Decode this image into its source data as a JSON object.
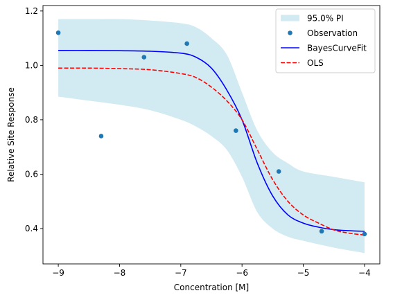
{
  "chart_data": {
    "type": "line",
    "xlabel": "Concentration [M]",
    "ylabel": "Relative Site Response",
    "xlim": [
      -9.25,
      -3.75
    ],
    "ylim": [
      0.27,
      1.22
    ],
    "grid": false,
    "legend_position": "top-right",
    "x_ticks": [
      -9,
      -8,
      -7,
      -6,
      -5,
      -4
    ],
    "x_tick_labels": [
      "−9",
      "−8",
      "−7",
      "−6",
      "−5",
      "−4"
    ],
    "y_ticks": [
      0.4,
      0.6,
      0.8,
      1.0,
      1.2
    ],
    "y_tick_labels": [
      "0.4",
      "0.6",
      "0.8",
      "1.0",
      "1.2"
    ],
    "series": [
      {
        "name": "95.0% PI",
        "kind": "band",
        "color": "#add8e6",
        "x": [
          -9.0,
          -8.5,
          -8.0,
          -7.5,
          -7.0,
          -6.75,
          -6.5,
          -6.25,
          -6.0,
          -5.75,
          -5.5,
          -5.25,
          -5.0,
          -4.5,
          -4.0
        ],
        "upper": [
          1.17,
          1.17,
          1.17,
          1.165,
          1.155,
          1.14,
          1.1,
          1.04,
          0.9,
          0.76,
          0.68,
          0.64,
          0.61,
          0.59,
          0.57
        ],
        "lower": [
          0.885,
          0.87,
          0.855,
          0.835,
          0.8,
          0.775,
          0.74,
          0.69,
          0.59,
          0.46,
          0.4,
          0.37,
          0.355,
          0.33,
          0.31
        ]
      },
      {
        "name": "Observation",
        "kind": "scatter",
        "color": "#1f77b4",
        "x": [
          -9.0,
          -8.3,
          -7.6,
          -6.9,
          -6.1,
          -5.4,
          -4.7,
          -4.0
        ],
        "y": [
          1.12,
          0.74,
          1.03,
          1.08,
          0.76,
          0.61,
          0.39,
          0.38
        ]
      },
      {
        "name": "BayesCurveFit",
        "kind": "line",
        "color": "#0000ff",
        "dash": "solid",
        "x": [
          -9.0,
          -8.5,
          -8.0,
          -7.5,
          -7.0,
          -6.75,
          -6.5,
          -6.25,
          -6.0,
          -5.75,
          -5.5,
          -5.25,
          -5.0,
          -4.75,
          -4.5,
          -4.25,
          -4.0
        ],
        "y": [
          1.055,
          1.055,
          1.054,
          1.052,
          1.045,
          1.03,
          0.99,
          0.91,
          0.8,
          0.64,
          0.52,
          0.45,
          0.42,
          0.405,
          0.396,
          0.392,
          0.39
        ]
      },
      {
        "name": "OLS",
        "kind": "line",
        "color": "#ff0000",
        "dash": "dashed",
        "x": [
          -9.0,
          -8.5,
          -8.0,
          -7.5,
          -7.0,
          -6.75,
          -6.5,
          -6.25,
          -6.0,
          -5.75,
          -5.5,
          -5.25,
          -5.0,
          -4.75,
          -4.5,
          -4.25,
          -4.0
        ],
        "y": [
          0.99,
          0.99,
          0.988,
          0.984,
          0.97,
          0.955,
          0.92,
          0.87,
          0.8,
          0.69,
          0.58,
          0.5,
          0.45,
          0.42,
          0.395,
          0.383,
          0.376
        ]
      }
    ]
  }
}
